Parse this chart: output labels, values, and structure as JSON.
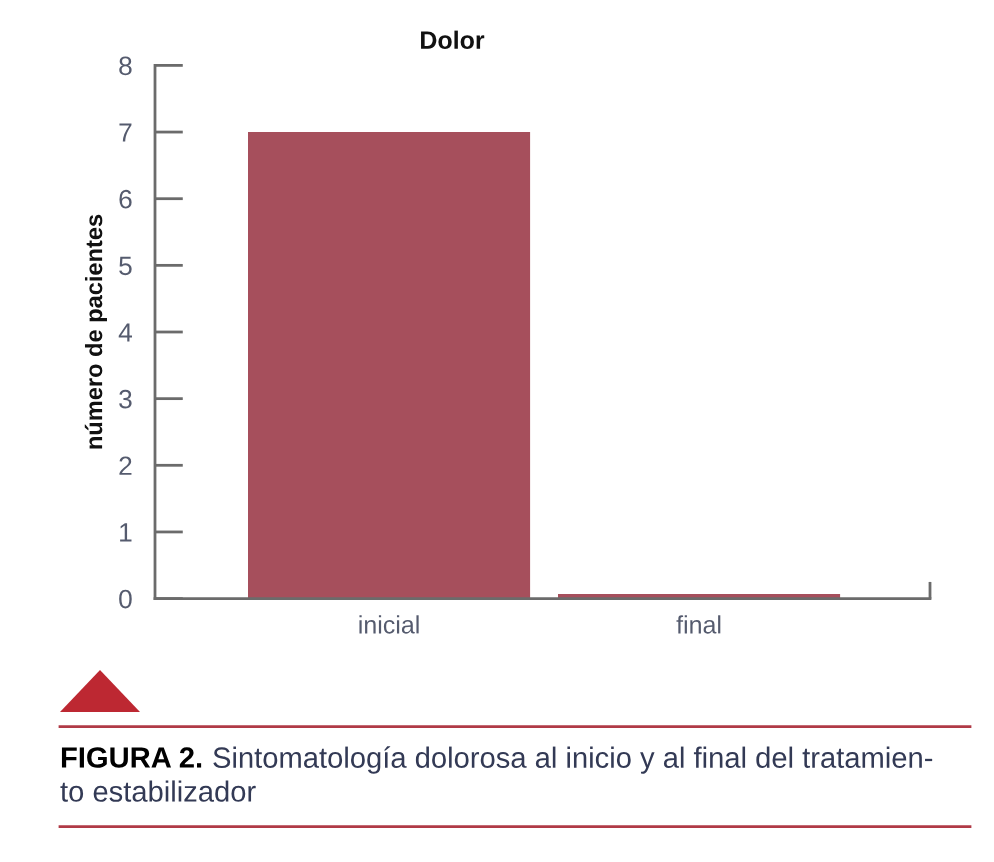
{
  "chart_data": {
    "type": "bar",
    "title": "Dolor",
    "ylabel": "número de pacientes",
    "categories": [
      "inicial",
      "final"
    ],
    "values": [
      7,
      0.07
    ],
    "color": "#a64f5c",
    "ylim": [
      0,
      8
    ],
    "yticks": [
      0,
      1,
      2,
      3,
      4,
      5,
      6,
      7,
      8
    ],
    "annotations": [
      "FIGURA 2. Sintomatología dolorosa al inicio y al final del tratamien-\nto estabilizador"
    ]
  }
}
